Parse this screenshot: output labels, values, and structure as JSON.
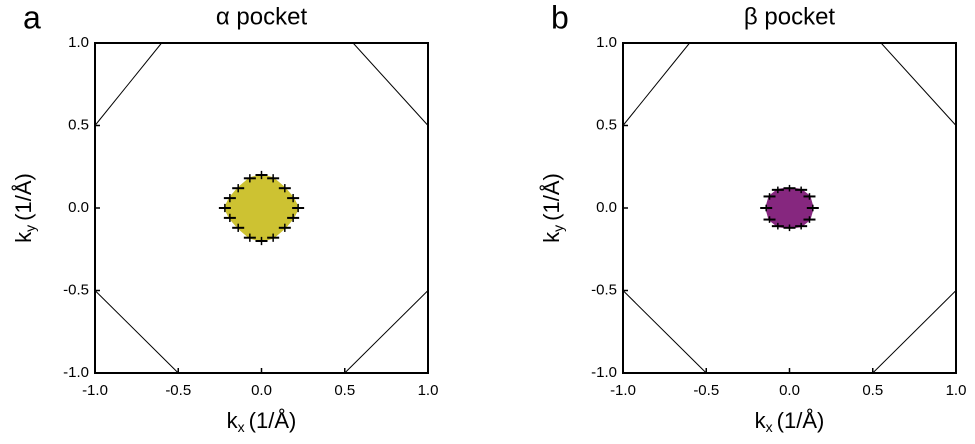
{
  "chart_data": [
    {
      "type": "scatter",
      "panel_label": "a",
      "title": "α pocket",
      "x_label": "k",
      "x_label_sub": "x",
      "x_label_unit": "(1/Å)",
      "y_label": "k",
      "y_label_sub": "y",
      "y_label_unit": "(1/Å)",
      "xlim": [
        -1,
        1
      ],
      "ylim": [
        -1,
        1
      ],
      "xticks": [
        {
          "value": -1,
          "label": "-1.0"
        },
        {
          "value": -0.5,
          "label": "-0.5"
        },
        {
          "value": 0,
          "label": "0.0"
        },
        {
          "value": 0.5,
          "label": "0.5"
        },
        {
          "value": 1,
          "label": "1.0"
        }
      ],
      "yticks": [
        {
          "value": -1,
          "label": "-1.0"
        },
        {
          "value": -0.5,
          "label": "-0.5"
        },
        {
          "value": 0,
          "label": "0.0"
        },
        {
          "value": 0.5,
          "label": "0.5"
        },
        {
          "value": 1,
          "label": "1.0"
        }
      ],
      "zone_lines": [
        {
          "x": [
            -0.6,
            -1
          ],
          "y": [
            1,
            0.5
          ]
        },
        {
          "x": [
            0.55,
            1
          ],
          "y": [
            1,
            0.5
          ]
        },
        {
          "x": [
            -1,
            -0.5
          ],
          "y": [
            -0.5,
            -1
          ]
        },
        {
          "x": [
            0.5,
            1
          ],
          "y": [
            -1,
            -0.5
          ]
        }
      ],
      "pocket": {
        "color": "#cdc232",
        "error": 0.025,
        "x": [
          0.22,
          0.19,
          0.14,
          0.07,
          0,
          -0.07,
          -0.14,
          -0.19,
          -0.22,
          -0.19,
          -0.14,
          -0.07,
          0,
          0.07,
          0.14,
          0.19
        ],
        "y": [
          0,
          0.06,
          0.12,
          0.18,
          0.2,
          0.18,
          0.12,
          0.06,
          0,
          -0.06,
          -0.12,
          -0.18,
          -0.2,
          -0.18,
          -0.12,
          -0.06
        ]
      }
    },
    {
      "type": "scatter",
      "panel_label": "b",
      "title": "β pocket",
      "x_label": "k",
      "x_label_sub": "x",
      "x_label_unit": "(1/Å)",
      "y_label": "k",
      "y_label_sub": "y",
      "y_label_unit": "(1/Å)",
      "xlim": [
        -1,
        1
      ],
      "ylim": [
        -1,
        1
      ],
      "xticks": [
        {
          "value": -1,
          "label": "-1.0"
        },
        {
          "value": -0.5,
          "label": "-0.5"
        },
        {
          "value": 0,
          "label": "0.0"
        },
        {
          "value": 0.5,
          "label": "0.5"
        },
        {
          "value": 1,
          "label": "1.0"
        }
      ],
      "yticks": [
        {
          "value": -1,
          "label": "-1.0"
        },
        {
          "value": -0.5,
          "label": "-0.5"
        },
        {
          "value": 0,
          "label": "0.0"
        },
        {
          "value": 0.5,
          "label": "0.5"
        },
        {
          "value": 1,
          "label": "1.0"
        }
      ],
      "zone_lines": [
        {
          "x": [
            -0.6,
            -1
          ],
          "y": [
            1,
            0.5
          ]
        },
        {
          "x": [
            0.55,
            1
          ],
          "y": [
            1,
            0.5
          ]
        },
        {
          "x": [
            -1,
            -0.5
          ],
          "y": [
            -0.5,
            -1
          ]
        },
        {
          "x": [
            0.5,
            1
          ],
          "y": [
            -1,
            -0.5
          ]
        }
      ],
      "pocket": {
        "color": "#86277f",
        "error": 0.02,
        "x": [
          0.14,
          0.12,
          0.07,
          0,
          -0.07,
          -0.12,
          -0.14,
          -0.12,
          -0.07,
          0,
          0.07,
          0.12
        ],
        "y": [
          0,
          0.07,
          0.11,
          0.12,
          0.11,
          0.07,
          0,
          -0.07,
          -0.11,
          -0.12,
          -0.11,
          -0.07
        ]
      }
    }
  ]
}
